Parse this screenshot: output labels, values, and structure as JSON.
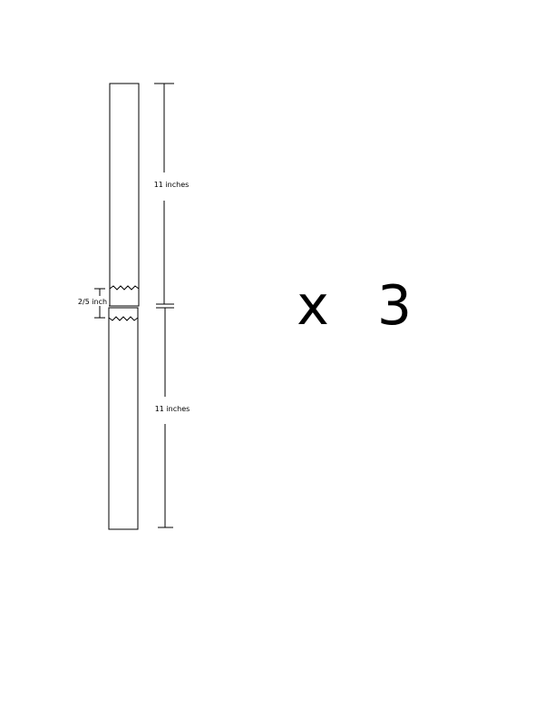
{
  "diagram": {
    "top_dimension_label": "11 inches",
    "bottom_dimension_label": "11 inches",
    "overlap_dimension_label": "2/5 inch",
    "multiplier_x": "x",
    "multiplier_count": "3"
  }
}
